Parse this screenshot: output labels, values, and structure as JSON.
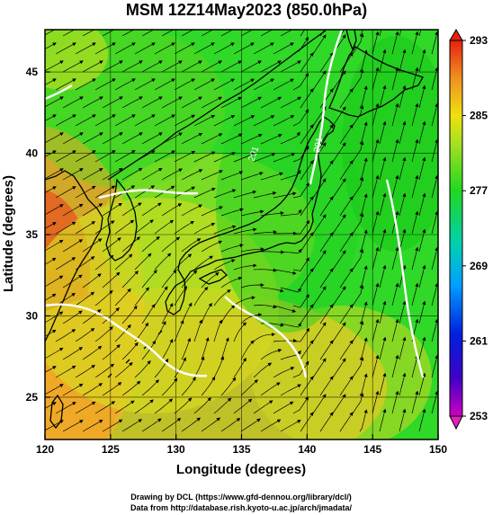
{
  "title": "MSM 12Z14May2023 (850.0hPa)",
  "x_axis": {
    "label": "Longitude (degrees)",
    "ticks": [
      "120",
      "125",
      "130",
      "135",
      "140",
      "145",
      "150"
    ]
  },
  "y_axis": {
    "label": "Latitude (degrees)",
    "ticks": [
      "25",
      "30",
      "35",
      "40",
      "45"
    ]
  },
  "colorbar": {
    "labels": [
      "253",
      "261",
      "269",
      "277",
      "285",
      "293"
    ]
  },
  "contour_labels": [
    "291",
    "291"
  ],
  "credits": {
    "line1": "Drawing by DCL (https://www.gfd-dennou.org/library/dcl/)",
    "line2": "Data from http://database.rish.kyoto-u.ac.jp/arch/jmadata/"
  },
  "chart_data": {
    "type": "heatmap",
    "title": "MSM 12Z14May2023 (850.0hPa)",
    "xlabel": "Longitude (degrees)",
    "ylabel": "Latitude (degrees)",
    "xlim": [
      120,
      150
    ],
    "ylim": [
      22.4,
      47.6
    ],
    "x_ticks": [
      120,
      125,
      130,
      135,
      140,
      145,
      150
    ],
    "y_ticks": [
      25,
      30,
      35,
      40,
      45
    ],
    "color_range": [
      253,
      293
    ],
    "colorbar_ticks": [
      253,
      261,
      269,
      277,
      285,
      293
    ],
    "grid": true,
    "overlays": [
      "streamlines",
      "coastlines",
      "white isotherm contours"
    ]
  }
}
